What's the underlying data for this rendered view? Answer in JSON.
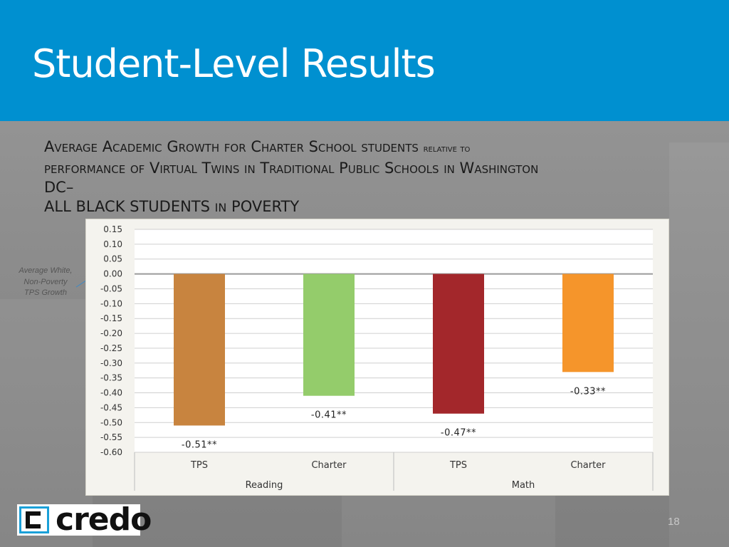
{
  "header": {
    "title": "Student-Level Results"
  },
  "subtitle": {
    "line1_a": "Average Academic Growth for Charter School students",
    "line1_b": "relative to",
    "line2": "performance of Virtual Twins in Traditional Public Schools in Washington",
    "line3": "DC–",
    "line4_a": "ALL BLACK STUDENTS",
    "line4_b": "IN",
    "line4_c": "POVERTY"
  },
  "annotation": {
    "text": "Average White, Non-Poverty TPS Growth"
  },
  "logo": {
    "text": "credo"
  },
  "page_number": "18",
  "colors": {
    "header": "#0090d0",
    "tps_reading": "#c8843f",
    "charter_reading": "#94cc6b",
    "tps_math": "#a3272b",
    "charter_math": "#f5952b"
  },
  "chart_data": {
    "type": "bar",
    "categories": [
      "TPS",
      "Charter",
      "TPS",
      "Charter"
    ],
    "groups": [
      {
        "label": "Reading",
        "span": [
          0,
          1
        ]
      },
      {
        "label": "Math",
        "span": [
          2,
          3
        ]
      }
    ],
    "values": [
      -0.51,
      -0.41,
      -0.47,
      -0.33
    ],
    "data_labels": [
      "-0.51**",
      "-0.41**",
      "-0.47**",
      "-0.33**"
    ],
    "bar_colors": [
      "#c8843f",
      "#94cc6b",
      "#a3272b",
      "#f5952b"
    ],
    "ylim": [
      -0.6,
      0.15
    ],
    "yticks": [
      "0.15",
      "0.10",
      "0.05",
      "0.00",
      "-0.05",
      "-0.10",
      "-0.15",
      "-0.20",
      "-0.25",
      "-0.30",
      "-0.35",
      "-0.40",
      "-0.45",
      "-0.50",
      "-0.55",
      "-0.60"
    ],
    "ytick_values": [
      0.15,
      0.1,
      0.05,
      0.0,
      -0.05,
      -0.1,
      -0.15,
      -0.2,
      -0.25,
      -0.3,
      -0.35,
      -0.4,
      -0.45,
      -0.5,
      -0.55,
      -0.6
    ],
    "grid": true,
    "legend": "none"
  }
}
